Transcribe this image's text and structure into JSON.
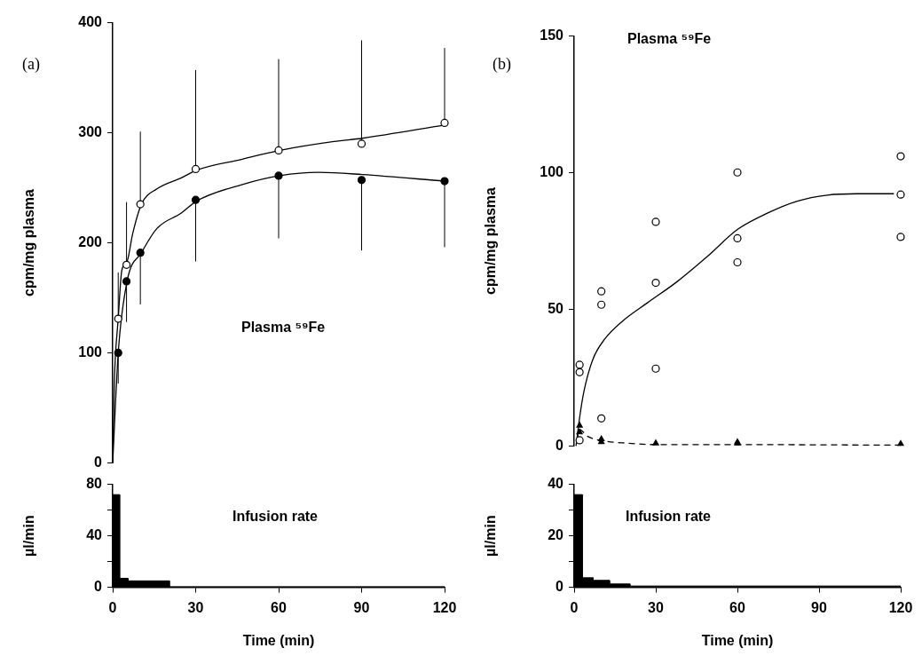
{
  "chart_data": [
    {
      "type": "scatter",
      "ylabel": "cpm/mg plasma",
      "annotations": [
        "(a)",
        "Plasma ⁵⁹Fe"
      ],
      "xlim": [
        0,
        120
      ],
      "xticks": [
        0,
        30,
        60,
        90,
        120
      ],
      "ylim": [
        0,
        400
      ],
      "yticks": [
        0,
        100,
        200,
        300,
        400
      ],
      "tick_labels": "y",
      "marker": "circle",
      "x": [
        2,
        5,
        10,
        30,
        60,
        90,
        120
      ],
      "series": [
        {
          "color": "#ffffff",
          "values": [
            131,
            180,
            235,
            267,
            284,
            290,
            309
          ],
          "errors": [
            [
              131,
              173
            ],
            [
              180,
              237
            ],
            [
              235,
              301
            ],
            [
              267,
              357
            ],
            [
              284,
              367
            ],
            [
              290,
              384
            ],
            [
              309,
              377
            ]
          ]
        },
        {
          "color": "#000000",
          "values": [
            100,
            165,
            191,
            239,
            261,
            257,
            256
          ],
          "errors": [
            [
              72,
              100
            ],
            [
              128,
              165
            ],
            [
              144,
              191
            ],
            [
              183,
              239
            ],
            [
              204,
              261
            ],
            [
              193,
              257
            ],
            [
              196,
              256
            ]
          ]
        },
        {
          "type": "line",
          "color": "#000000",
          "marker": "none",
          "x": [
            0,
            0.6,
            2,
            3.3,
            5.2,
            7.2,
            10.4,
            16,
            24.8,
            30.4,
            46.9,
            60.5,
            80,
            90.3,
            120
          ],
          "values": [
            0,
            74,
            131,
            175,
            183,
            208,
            235,
            249,
            259,
            266,
            276,
            284,
            292,
            295,
            307
          ]
        },
        {
          "type": "line",
          "color": "#000000",
          "marker": "none",
          "x": [
            0,
            2,
            5.2,
            10.4,
            16,
            24.8,
            30.4,
            46.9,
            60.5,
            74.4,
            90.3,
            120
          ],
          "values": [
            0,
            100,
            165,
            191,
            213,
            227,
            238,
            253,
            261,
            264,
            262,
            256
          ]
        }
      ]
    },
    {
      "type": "scatter",
      "ylabel": "cpm/mg plasma",
      "annotations": [
        "(b)",
        "Plasma ⁵⁹Fe"
      ],
      "xlim": [
        0,
        120
      ],
      "xticks": [
        0,
        30,
        60,
        90,
        120
      ],
      "ylim": [
        0,
        150
      ],
      "yticks": [
        0,
        50,
        100,
        150
      ],
      "tick_labels": "y",
      "marker": "circle",
      "series": [
        {
          "color": "#ffffff",
          "x": [
            2,
            2,
            2,
            10,
            10,
            10,
            30,
            30,
            30,
            60,
            60,
            60,
            120,
            120,
            120
          ],
          "values": [
            29.7,
            27,
            2.1,
            56.6,
            51.7,
            10.1,
            82,
            59.7,
            28.3,
            100.1,
            76,
            67.2,
            106,
            92,
            76.5
          ]
        },
        {
          "color": "#000000",
          "marker": "triangle",
          "x": [
            2,
            2,
            10,
            10,
            30,
            60,
            60,
            120
          ],
          "values": [
            7.5,
            5,
            2.5,
            1.5,
            1,
            1,
            1.4,
            0.8
          ]
        },
        {
          "type": "line",
          "color": "#000000",
          "marker": "none",
          "x": [
            0.7,
            1.9,
            3.5,
            6.8,
            11.3,
            17.9,
            26.8,
            37.8,
            48.9,
            60,
            71,
            82,
            93,
            104,
            117.5
          ],
          "values": [
            0,
            9.6,
            19.5,
            31.5,
            39.2,
            45.8,
            52.3,
            60.1,
            69.3,
            79.2,
            85.2,
            89.6,
            91.8,
            92.3,
            92.3
          ]
        },
        {
          "type": "line",
          "color": "#000000",
          "marker": "none",
          "line_style": "dashed",
          "x": [
            1,
            2,
            5,
            10,
            20,
            30,
            60,
            120
          ],
          "values": [
            2,
            6,
            3.5,
            2,
            1,
            0.5,
            0.5,
            0.3
          ]
        }
      ]
    },
    {
      "type": "area",
      "xlabel": "Time (min)",
      "ylabel": "µl/min",
      "annotations": [
        "Infusion rate"
      ],
      "xlim": [
        0,
        120
      ],
      "xticks": [
        0,
        30,
        60,
        90,
        120
      ],
      "ylim": [
        0,
        80
      ],
      "yticks": [
        0,
        {
          "value": 20,
          "label": null
        },
        40,
        {
          "value": 60,
          "label": null
        },
        80
      ],
      "marker": "none",
      "series": [
        {
          "color": "#000000",
          "x": [
            0,
            0,
            2.5,
            2.5,
            5.5,
            5.5,
            20.5,
            20.5,
            120
          ],
          "values": [
            0,
            72,
            72,
            7,
            7,
            5,
            5,
            0.5,
            0.5
          ]
        }
      ]
    },
    {
      "type": "area",
      "xlabel": "Time (min)",
      "ylabel": "µl/min",
      "annotations": [
        "Infusion rate"
      ],
      "xlim": [
        0,
        120
      ],
      "xticks": [
        0,
        30,
        60,
        90,
        120
      ],
      "ylim": [
        0,
        40
      ],
      "yticks": [
        0,
        {
          "value": 10,
          "label": null
        },
        20,
        {
          "value": 30,
          "label": null
        },
        40
      ],
      "marker": "none",
      "series": [
        {
          "color": "#000000",
          "x": [
            0,
            0,
            3,
            3,
            7,
            7,
            13,
            13,
            20.5,
            20.5,
            120
          ],
          "values": [
            0,
            36,
            36,
            3.7,
            3.7,
            2.7,
            2.7,
            1.3,
            1.3,
            0.5,
            0.5
          ]
        }
      ]
    }
  ]
}
